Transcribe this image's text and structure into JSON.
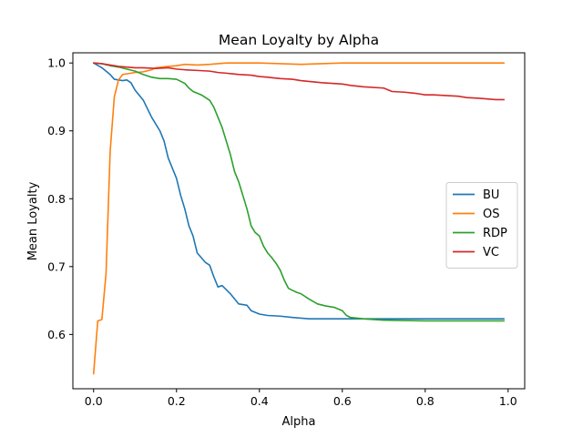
{
  "chart_data": {
    "type": "line",
    "title": "Mean Loyalty by Alpha",
    "xlabel": "Alpha",
    "ylabel": "Mean Loyalty",
    "xlim": [
      -0.05,
      1.04
    ],
    "ylim": [
      0.52,
      1.015
    ],
    "x_ticks": [
      0.0,
      0.2,
      0.4,
      0.6,
      0.8,
      1.0
    ],
    "x_tick_labels": [
      "0.0",
      "0.2",
      "0.4",
      "0.6",
      "0.8",
      "1.0"
    ],
    "y_ticks": [
      0.6,
      0.7,
      0.8,
      0.9,
      1.0
    ],
    "y_tick_labels": [
      "0.6",
      "0.7",
      "0.8",
      "0.9",
      "1.0"
    ],
    "grid": false,
    "legend_position": "center-right",
    "series": [
      {
        "name": "BU",
        "color": "#1f77b4",
        "points": [
          [
            0.0,
            1.0
          ],
          [
            0.02,
            0.993
          ],
          [
            0.04,
            0.983
          ],
          [
            0.05,
            0.976
          ],
          [
            0.07,
            0.974
          ],
          [
            0.08,
            0.975
          ],
          [
            0.09,
            0.971
          ],
          [
            0.1,
            0.96
          ],
          [
            0.12,
            0.945
          ],
          [
            0.14,
            0.92
          ],
          [
            0.16,
            0.9
          ],
          [
            0.17,
            0.885
          ],
          [
            0.18,
            0.86
          ],
          [
            0.2,
            0.83
          ],
          [
            0.21,
            0.805
          ],
          [
            0.22,
            0.785
          ],
          [
            0.23,
            0.76
          ],
          [
            0.24,
            0.745
          ],
          [
            0.25,
            0.72
          ],
          [
            0.27,
            0.706
          ],
          [
            0.28,
            0.702
          ],
          [
            0.29,
            0.685
          ],
          [
            0.3,
            0.67
          ],
          [
            0.31,
            0.672
          ],
          [
            0.33,
            0.66
          ],
          [
            0.35,
            0.645
          ],
          [
            0.37,
            0.643
          ],
          [
            0.38,
            0.635
          ],
          [
            0.4,
            0.63
          ],
          [
            0.42,
            0.628
          ],
          [
            0.45,
            0.627
          ],
          [
            0.48,
            0.625
          ],
          [
            0.52,
            0.623
          ],
          [
            0.6,
            0.623
          ],
          [
            0.7,
            0.623
          ],
          [
            0.8,
            0.623
          ],
          [
            0.9,
            0.623
          ],
          [
            0.99,
            0.623
          ]
        ]
      },
      {
        "name": "OS",
        "color": "#ff7f0e",
        "points": [
          [
            0.0,
            0.542
          ],
          [
            0.01,
            0.62
          ],
          [
            0.02,
            0.622
          ],
          [
            0.03,
            0.69
          ],
          [
            0.04,
            0.87
          ],
          [
            0.05,
            0.95
          ],
          [
            0.06,
            0.975
          ],
          [
            0.07,
            0.983
          ],
          [
            0.08,
            0.984
          ],
          [
            0.1,
            0.986
          ],
          [
            0.12,
            0.987
          ],
          [
            0.14,
            0.99
          ],
          [
            0.15,
            0.993
          ],
          [
            0.18,
            0.995
          ],
          [
            0.2,
            0.996
          ],
          [
            0.22,
            0.998
          ],
          [
            0.25,
            0.997
          ],
          [
            0.28,
            0.998
          ],
          [
            0.3,
            0.999
          ],
          [
            0.32,
            1.0
          ],
          [
            0.4,
            1.0
          ],
          [
            0.45,
            0.999
          ],
          [
            0.5,
            0.998
          ],
          [
            0.55,
            0.999
          ],
          [
            0.6,
            1.0
          ],
          [
            0.7,
            1.0
          ],
          [
            0.8,
            1.0
          ],
          [
            0.9,
            1.0
          ],
          [
            0.99,
            1.0
          ]
        ]
      },
      {
        "name": "RDP",
        "color": "#2ca02c",
        "points": [
          [
            0.0,
            1.0
          ],
          [
            0.02,
            0.999
          ],
          [
            0.04,
            0.996
          ],
          [
            0.06,
            0.994
          ],
          [
            0.08,
            0.991
          ],
          [
            0.1,
            0.988
          ],
          [
            0.12,
            0.983
          ],
          [
            0.14,
            0.979
          ],
          [
            0.16,
            0.977
          ],
          [
            0.18,
            0.977
          ],
          [
            0.2,
            0.976
          ],
          [
            0.22,
            0.97
          ],
          [
            0.23,
            0.963
          ],
          [
            0.24,
            0.958
          ],
          [
            0.26,
            0.953
          ],
          [
            0.28,
            0.945
          ],
          [
            0.29,
            0.935
          ],
          [
            0.3,
            0.92
          ],
          [
            0.31,
            0.905
          ],
          [
            0.32,
            0.885
          ],
          [
            0.33,
            0.865
          ],
          [
            0.34,
            0.84
          ],
          [
            0.35,
            0.825
          ],
          [
            0.36,
            0.805
          ],
          [
            0.37,
            0.785
          ],
          [
            0.38,
            0.76
          ],
          [
            0.39,
            0.75
          ],
          [
            0.4,
            0.745
          ],
          [
            0.41,
            0.73
          ],
          [
            0.42,
            0.72
          ],
          [
            0.43,
            0.713
          ],
          [
            0.44,
            0.705
          ],
          [
            0.45,
            0.695
          ],
          [
            0.46,
            0.68
          ],
          [
            0.47,
            0.668
          ],
          [
            0.48,
            0.665
          ],
          [
            0.49,
            0.662
          ],
          [
            0.5,
            0.66
          ],
          [
            0.52,
            0.652
          ],
          [
            0.54,
            0.645
          ],
          [
            0.56,
            0.642
          ],
          [
            0.58,
            0.64
          ],
          [
            0.6,
            0.635
          ],
          [
            0.61,
            0.628
          ],
          [
            0.62,
            0.625
          ],
          [
            0.65,
            0.623
          ],
          [
            0.7,
            0.621
          ],
          [
            0.8,
            0.62
          ],
          [
            0.9,
            0.62
          ],
          [
            0.99,
            0.62
          ]
        ]
      },
      {
        "name": "VC",
        "color": "#d62728",
        "points": [
          [
            0.0,
            1.0
          ],
          [
            0.02,
            0.999
          ],
          [
            0.04,
            0.997
          ],
          [
            0.06,
            0.995
          ],
          [
            0.08,
            0.994
          ],
          [
            0.1,
            0.993
          ],
          [
            0.12,
            0.993
          ],
          [
            0.15,
            0.992
          ],
          [
            0.18,
            0.993
          ],
          [
            0.2,
            0.991
          ],
          [
            0.22,
            0.99
          ],
          [
            0.25,
            0.989
          ],
          [
            0.28,
            0.988
          ],
          [
            0.3,
            0.986
          ],
          [
            0.32,
            0.985
          ],
          [
            0.35,
            0.983
          ],
          [
            0.38,
            0.982
          ],
          [
            0.4,
            0.98
          ],
          [
            0.42,
            0.979
          ],
          [
            0.45,
            0.977
          ],
          [
            0.48,
            0.976
          ],
          [
            0.5,
            0.974
          ],
          [
            0.55,
            0.971
          ],
          [
            0.6,
            0.969
          ],
          [
            0.62,
            0.967
          ],
          [
            0.65,
            0.965
          ],
          [
            0.7,
            0.963
          ],
          [
            0.72,
            0.958
          ],
          [
            0.75,
            0.957
          ],
          [
            0.78,
            0.955
          ],
          [
            0.8,
            0.953
          ],
          [
            0.82,
            0.953
          ],
          [
            0.85,
            0.952
          ],
          [
            0.88,
            0.951
          ],
          [
            0.9,
            0.949
          ],
          [
            0.93,
            0.948
          ],
          [
            0.95,
            0.947
          ],
          [
            0.97,
            0.946
          ],
          [
            0.99,
            0.946
          ]
        ]
      }
    ]
  }
}
